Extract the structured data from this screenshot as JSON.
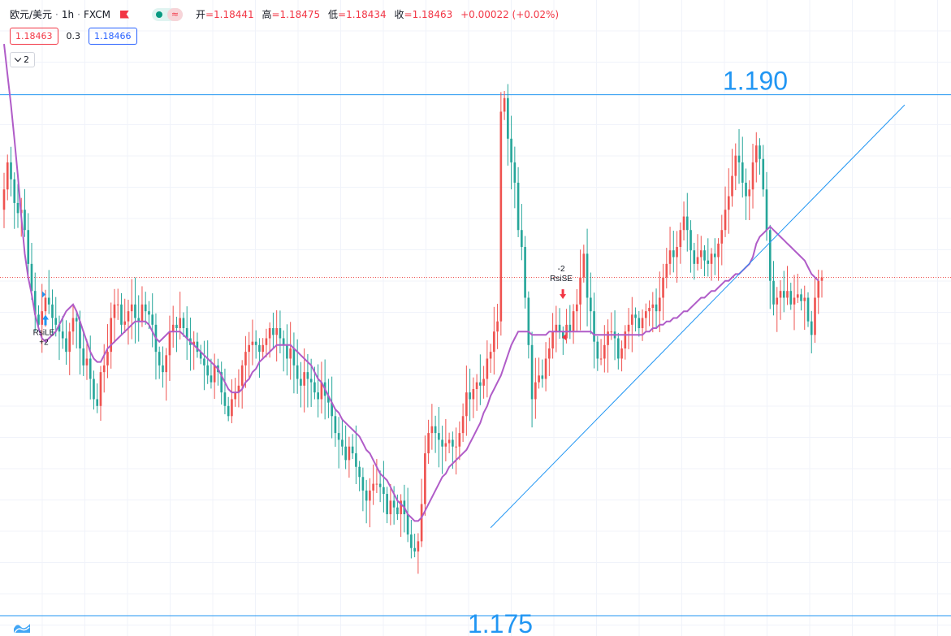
{
  "header": {
    "symbol": "欧元/美元",
    "sep": "·",
    "interval": "1h",
    "exchange": "FXCM",
    "ohlc": {
      "open_label": "开",
      "open": "=1.18441",
      "high_label": "高",
      "high": "=1.18475",
      "low_label": "低",
      "low": "=1.18434",
      "close_label": "收",
      "close": "=1.18463",
      "change": "+0.00022 (+0.02%)"
    },
    "bid": "1.18463",
    "spread": "0.3",
    "ask": "1.18466",
    "collapse_count": "2",
    "toggle_icon": "≈"
  },
  "colors": {
    "up": "#ef5350",
    "down": "#26a69a",
    "ma": "#b05cc8",
    "hline": "#2196f3",
    "trend": "#2196f3",
    "last_price_line": "#ef5350",
    "grid": "#f0f3fa",
    "annotation_text": "#2196f3"
  },
  "chart_data": {
    "type": "candlestick",
    "symbol": "EUR/USD",
    "interval": "1h",
    "ylim": [
      1.174,
      1.1928
    ],
    "grid": true,
    "series": [
      {
        "name": "Candles",
        "style": "candles",
        "close": [
          1.1872,
          1.188,
          1.1875,
          1.1868,
          1.1865,
          1.1866,
          1.186,
          1.185,
          1.1842,
          1.1835,
          1.1832,
          1.1836,
          1.184,
          1.1838,
          1.1834,
          1.1832,
          1.183,
          1.1828,
          1.1824,
          1.183,
          1.1834,
          1.1833,
          1.1825,
          1.182,
          1.1822,
          1.1816,
          1.181,
          1.1808,
          1.1818,
          1.182,
          1.1824,
          1.1834,
          1.1838,
          1.1838,
          1.1832,
          1.1833,
          1.1836,
          1.1838,
          1.1834,
          1.1833,
          1.1838,
          1.1836,
          1.1835,
          1.1832,
          1.1824,
          1.182,
          1.1818,
          1.1823,
          1.183,
          1.1832,
          1.1831,
          1.1834,
          1.1831,
          1.1828,
          1.1826,
          1.1827,
          1.1824,
          1.1822,
          1.182,
          1.1817,
          1.1815,
          1.182,
          1.1818,
          1.1812,
          1.1808,
          1.1805,
          1.181,
          1.1812,
          1.1814,
          1.182,
          1.1824,
          1.1826,
          1.1827,
          1.1826,
          1.1824,
          1.1826,
          1.1828,
          1.1831,
          1.1829,
          1.1831,
          1.1828,
          1.1826,
          1.1822,
          1.1825,
          1.182,
          1.1816,
          1.1814,
          1.1818,
          1.1816,
          1.1815,
          1.1812,
          1.181,
          1.1815,
          1.1811,
          1.1809,
          1.1805,
          1.18,
          1.1798,
          1.1796,
          1.1792,
          1.1796,
          1.1794,
          1.179,
          1.1787,
          1.1783,
          1.178,
          1.1783,
          1.1785,
          1.1785,
          1.1784,
          1.1782,
          1.1776,
          1.178,
          1.1778,
          1.1776,
          1.178,
          1.1776,
          1.177,
          1.1766,
          1.1765,
          1.1768,
          1.1779,
          1.1794,
          1.18,
          1.1802,
          1.18,
          1.1798,
          1.1796,
          1.1797,
          1.1798,
          1.1796,
          1.1796,
          1.18,
          1.1805,
          1.1812,
          1.181,
          1.1813,
          1.1815,
          1.1814,
          1.1816,
          1.1822,
          1.1824,
          1.183,
          1.1833,
          1.1895,
          1.1899,
          1.1887,
          1.188,
          1.1874,
          1.186,
          1.1855,
          1.184,
          1.1826,
          1.181,
          1.1815,
          1.1817,
          1.1816,
          1.1822,
          1.1825,
          1.183,
          1.1832,
          1.183,
          1.1828,
          1.1832,
          1.183,
          1.1836,
          1.1838,
          1.1846,
          1.1853,
          1.184,
          1.1836,
          1.1827,
          1.1822,
          1.1822,
          1.1826,
          1.183,
          1.183,
          1.1828,
          1.1822,
          1.1825,
          1.183,
          1.1832,
          1.1835,
          1.1834,
          1.1831,
          1.1834,
          1.1836,
          1.1837,
          1.1838,
          1.1836,
          1.184,
          1.1846,
          1.185,
          1.1854,
          1.1852,
          1.1855,
          1.186,
          1.1864,
          1.186,
          1.1854,
          1.185,
          1.1852,
          1.1854,
          1.1851,
          1.185,
          1.1853,
          1.1852,
          1.1856,
          1.186,
          1.1866,
          1.187,
          1.1876,
          1.1882,
          1.188,
          1.1874,
          1.187,
          1.1872,
          1.188,
          1.1885,
          1.1881,
          1.1872,
          1.186,
          1.1845,
          1.1838,
          1.184,
          1.1842,
          1.184,
          1.1842,
          1.1838,
          1.184,
          1.1841,
          1.1839,
          1.184,
          1.1833,
          1.1829,
          1.184,
          1.1845,
          1.1846
        ],
        "ma": [
          1.1915,
          1.1906,
          1.1897,
          1.1887,
          1.1876,
          1.1864,
          1.1853,
          1.1846,
          1.1841,
          1.1835,
          1.1831,
          1.1828,
          1.1827,
          1.1828,
          1.1829,
          1.183,
          1.1832,
          1.1834,
          1.1836,
          1.1837,
          1.1838,
          1.1836,
          1.1833,
          1.183,
          1.1827,
          1.1824,
          1.1822,
          1.1821,
          1.1821,
          1.1823,
          1.1825,
          1.1826,
          1.1827,
          1.1828,
          1.1829,
          1.183,
          1.1831,
          1.1832,
          1.1833,
          1.1833,
          1.1833,
          1.1833,
          1.1832,
          1.183,
          1.1828,
          1.1827,
          1.1828,
          1.1829,
          1.183,
          1.183,
          1.183,
          1.183,
          1.1829,
          1.1828,
          1.1827,
          1.1826,
          1.1825,
          1.1824,
          1.1823,
          1.1822,
          1.1821,
          1.182,
          1.1819,
          1.1817,
          1.1815,
          1.1813,
          1.1812,
          1.1812,
          1.1812,
          1.1813,
          1.1815,
          1.1816,
          1.1818,
          1.1819,
          1.1821,
          1.1822,
          1.1823,
          1.1824,
          1.1825,
          1.1826,
          1.1826,
          1.1826,
          1.1826,
          1.1826,
          1.1825,
          1.1824,
          1.1823,
          1.1822,
          1.1821,
          1.182,
          1.1818,
          1.1816,
          1.1815,
          1.1813,
          1.1811,
          1.1809,
          1.1807,
          1.1806,
          1.1804,
          1.1803,
          1.1802,
          1.1801,
          1.18,
          1.1799,
          1.1797,
          1.1795,
          1.1794,
          1.1792,
          1.179,
          1.1788,
          1.1787,
          1.1786,
          1.1784,
          1.1782,
          1.178,
          1.1779,
          1.1778,
          1.1776,
          1.1775,
          1.1774,
          1.1774,
          1.1775,
          1.1777,
          1.1779,
          1.1781,
          1.1783,
          1.1785,
          1.1787,
          1.1788,
          1.179,
          1.1791,
          1.1792,
          1.1793,
          1.1794,
          1.1795,
          1.1797,
          1.1799,
          1.1801,
          1.1803,
          1.1806,
          1.1808,
          1.1811,
          1.1813,
          1.1815,
          1.1817,
          1.182,
          1.1823,
          1.1826,
          1.1828,
          1.183,
          1.183,
          1.183,
          1.183,
          1.1829,
          1.1829,
          1.1829,
          1.1829,
          1.1829,
          1.183,
          1.183,
          1.183,
          1.183,
          1.183,
          1.183,
          1.183,
          1.183,
          1.183,
          1.183,
          1.183,
          1.183,
          1.183,
          1.1829,
          1.1829,
          1.1829,
          1.1829,
          1.1829,
          1.1829,
          1.1829,
          1.1829,
          1.1829,
          1.1829,
          1.1829,
          1.1829,
          1.1829,
          1.1829,
          1.1829,
          1.183,
          1.183,
          1.1831,
          1.1831,
          1.1832,
          1.1832,
          1.1833,
          1.1833,
          1.1834,
          1.1834,
          1.1835,
          1.1836,
          1.1836,
          1.1837,
          1.1838,
          1.1839,
          1.184,
          1.184,
          1.1841,
          1.1842,
          1.1842,
          1.1843,
          1.1844,
          1.1845,
          1.1845,
          1.1846,
          1.1847,
          1.1847,
          1.1848,
          1.1849,
          1.185,
          1.1852,
          1.1856,
          1.1858,
          1.1859,
          1.186,
          1.1861,
          1.186,
          1.1859,
          1.1858,
          1.1857,
          1.1856,
          1.1855,
          1.1854,
          1.1853,
          1.1852,
          1.1851,
          1.1849,
          1.1847,
          1.1846,
          1.1845
        ]
      },
      {
        "name": "MA",
        "style": "line"
      }
    ],
    "annotations": {
      "hlines": [
        {
          "price": 1.19,
          "label": "1.190"
        },
        {
          "price": 1.1746,
          "label": "1.175"
        }
      ],
      "trendline": {
        "from_index": 141,
        "from_price": 1.1772,
        "to_index": 261,
        "to_price": 1.1897
      },
      "last_price": 1.1846,
      "markers": [
        {
          "index": 12,
          "label": "RsiLE",
          "qty": "+2",
          "dir": "long"
        },
        {
          "index": 161,
          "label": "RsiSE",
          "qty": "-2",
          "dir": "short"
        }
      ]
    }
  }
}
